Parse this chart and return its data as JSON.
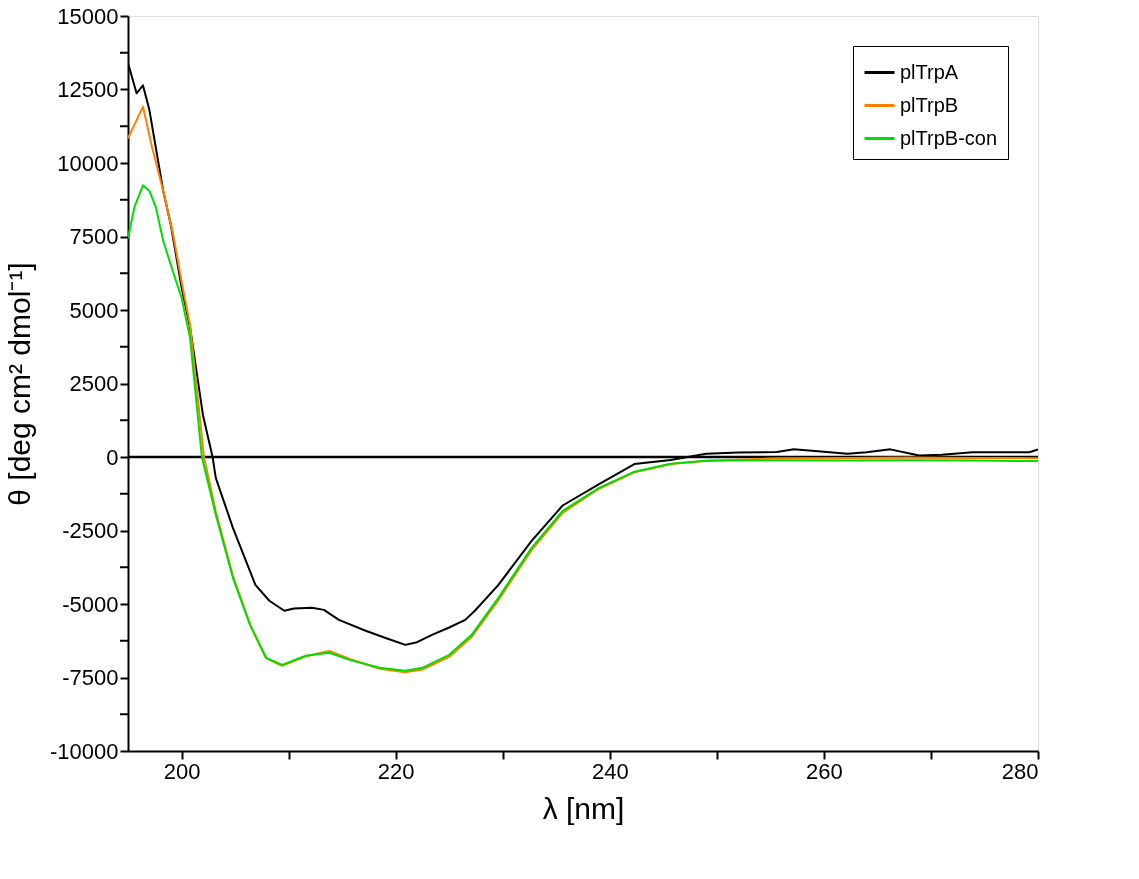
{
  "chart_data": {
    "type": "line",
    "xlabel": "λ [nm]",
    "ylabel": "θ [deg cm² dmol⁻¹]",
    "xlim": [
      195,
      280
    ],
    "xticks": [
      200,
      {
        "value": 210,
        "label": null
      },
      220,
      {
        "value": 230,
        "label": null
      },
      240,
      {
        "value": 250,
        "label": null
      },
      260,
      {
        "value": 270,
        "label": null
      },
      280
    ],
    "ylim": [
      -10000,
      15000
    ],
    "yticks": [
      -10000,
      {
        "value": -8750,
        "label": null
      },
      -7500,
      {
        "value": -6250,
        "label": null
      },
      -5000,
      {
        "value": -3750,
        "label": null
      },
      -2500,
      {
        "value": -1250,
        "label": null
      },
      0,
      {
        "value": 1250,
        "label": null
      },
      2500,
      {
        "value": 3750,
        "label": null
      },
      5000,
      {
        "value": 6250,
        "label": null
      },
      7500,
      {
        "value": 8750,
        "label": null
      },
      10000,
      {
        "value": 11250,
        "label": null
      },
      12500,
      {
        "value": 13750,
        "label": null
      },
      15000
    ],
    "grid": false,
    "legend": "top right",
    "line_style": "solid",
    "marker": "none",
    "ref_lines": [
      {
        "axis": "y",
        "value": 0,
        "color": "#000000"
      }
    ],
    "series": [
      {
        "name": "plTrpA",
        "color": "#000000",
        "x": [
          195,
          195.8,
          196.4,
          197,
          198.3,
          199,
          200,
          200.8,
          202,
          202.9,
          203.2,
          204.8,
          206.9,
          208.2,
          209.6,
          210.5,
          212.2,
          213.3,
          214.7,
          217.2,
          219,
          220.9,
          222,
          223.4,
          225,
          226.5,
          227.4,
          229.6,
          232.7,
          235.6,
          239,
          242.3,
          245.7,
          249,
          252,
          255.6,
          257.2,
          260,
          262.2,
          264,
          266.2,
          268.9,
          271,
          273.9,
          277,
          279.2,
          280
        ],
        "values": [
          13400,
          12370,
          12640,
          11800,
          9030,
          7900,
          5770,
          4400,
          1430,
          0,
          -710,
          -2410,
          -4350,
          -4890,
          -5230,
          -5150,
          -5130,
          -5200,
          -5540,
          -5910,
          -6150,
          -6390,
          -6300,
          -6050,
          -5800,
          -5540,
          -5230,
          -4350,
          -2850,
          -1650,
          -920,
          -240,
          -100,
          110,
          150,
          170,
          260,
          180,
          110,
          160,
          260,
          50,
          80,
          160,
          160,
          160,
          260
        ]
      },
      {
        "name": "plTrpB",
        "color": "#ff8000",
        "x": [
          195,
          196.4,
          197.2,
          198.3,
          199.2,
          200,
          200.8,
          202.1,
          203.2,
          204.8,
          206.4,
          207.9,
          209.4,
          211.6,
          213.8,
          215.7,
          218.5,
          220.9,
          222.5,
          225,
          227.1,
          229.6,
          232.7,
          235.6,
          239,
          242.3,
          245.7,
          249,
          255.6,
          262.2,
          268,
          274,
          280
        ],
        "values": [
          10840,
          11920,
          10600,
          9030,
          7600,
          5980,
          4480,
          0,
          -1850,
          -4050,
          -5700,
          -6850,
          -7100,
          -6780,
          -6600,
          -6870,
          -7200,
          -7320,
          -7230,
          -6800,
          -6120,
          -4870,
          -3170,
          -1900,
          -1080,
          -520,
          -240,
          -130,
          -40,
          -30,
          -20,
          -30,
          -40
        ]
      },
      {
        "name": "plTrpB-con",
        "color": "#00dd00",
        "x": [
          195,
          195.6,
          196.4,
          197,
          197.6,
          198.3,
          199.2,
          200,
          200.8,
          201.9,
          203.2,
          204.8,
          206.4,
          207.9,
          209.4,
          211.6,
          213.8,
          215.7,
          218.5,
          220.9,
          222.5,
          225,
          227.1,
          229.6,
          232.7,
          235.6,
          239,
          242.3,
          245.7,
          249,
          255.6,
          262.2,
          268,
          274,
          280
        ],
        "values": [
          7440,
          8500,
          9240,
          9050,
          8500,
          7340,
          6300,
          5420,
          4040,
          0,
          -1960,
          -4110,
          -5710,
          -6830,
          -7070,
          -6760,
          -6660,
          -6900,
          -7170,
          -7270,
          -7170,
          -6730,
          -6050,
          -4790,
          -3090,
          -1830,
          -1050,
          -500,
          -230,
          -130,
          -110,
          -120,
          -110,
          -120,
          -140
        ]
      }
    ]
  }
}
